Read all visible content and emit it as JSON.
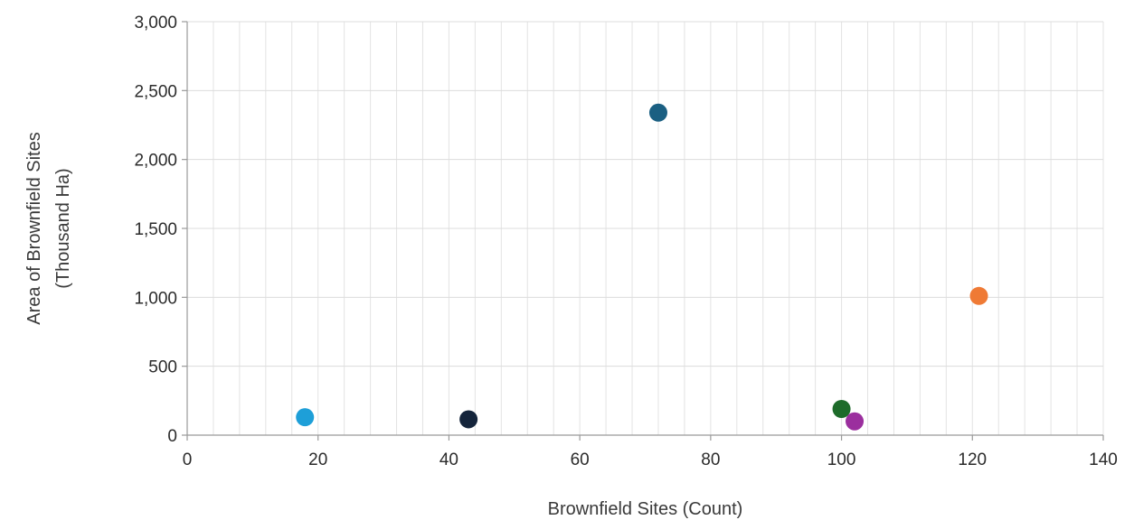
{
  "chart_data": {
    "type": "scatter",
    "title": "",
    "xlabel": "Brownfield Sites (Count)",
    "ylabel_line1": "Area of Brownfield Sites",
    "ylabel_line2": "(Thousand Ha)",
    "xlim": [
      0,
      140
    ],
    "ylim": [
      0,
      3000
    ],
    "x_ticks": [
      0,
      20,
      40,
      60,
      80,
      100,
      120,
      140
    ],
    "x_tick_labels": [
      "0",
      "20",
      "40",
      "60",
      "80",
      "100",
      "120",
      "140"
    ],
    "y_ticks": [
      0,
      500,
      1000,
      1500,
      2000,
      2500,
      3000
    ],
    "y_tick_labels": [
      "0",
      "500",
      "1,000",
      "1,500",
      "2,000",
      "2,500",
      "3,000"
    ],
    "x_minor_step": 4,
    "grid": true,
    "legend": "none",
    "points": [
      {
        "x": 18,
        "y": 130,
        "color": "#1e9fd8"
      },
      {
        "x": 43,
        "y": 115,
        "color": "#14243b"
      },
      {
        "x": 72,
        "y": 2340,
        "color": "#1a5f82"
      },
      {
        "x": 100,
        "y": 190,
        "color": "#1d6b2a"
      },
      {
        "x": 102,
        "y": 100,
        "color": "#9b2f9e"
      },
      {
        "x": 121,
        "y": 1010,
        "color": "#ef7a35"
      }
    ]
  }
}
